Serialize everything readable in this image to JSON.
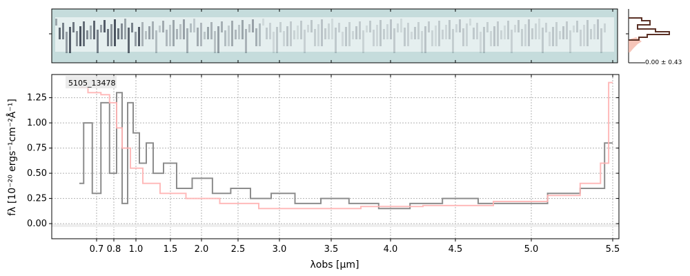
{
  "chart_data": {
    "type": "line",
    "object_label": "5105_13478",
    "xlabel": "λobs [μm]",
    "ylabel": "fλ [10⁻²⁰ ergs⁻¹cm⁻²Å⁻¹]",
    "x_ticks": [
      "0.7",
      "0.8",
      "1.0",
      "1.5",
      "2.0",
      "2.5",
      "3.0",
      "3.5",
      "4.0",
      "4.5",
      "5.0",
      "5.5"
    ],
    "y_ticks": [
      "0.00",
      "0.25",
      "0.50",
      "0.75",
      "1.00",
      "1.25"
    ],
    "ylim": [
      -0.15,
      1.48
    ],
    "grid": true,
    "side_panel_label": "0.00 ± 0.43",
    "colors": {
      "data": "#8c8c8c",
      "model": "#ffb3b3",
      "spectrum2d_bg": "#c5dcdc",
      "hist_line": "#5a3025",
      "hist_fill": "#f4b6a8"
    },
    "series": [
      {
        "name": "",
        "x": [
          0.6,
          0.65,
          0.7,
          0.75,
          0.8,
          0.85,
          0.9,
          0.95,
          1.0,
          1.1,
          1.2,
          1.3,
          1.5,
          1.7,
          2.0,
          2.3,
          2.5,
          2.8,
          3.0,
          3.3,
          3.5,
          3.8,
          4.0,
          4.3,
          4.5,
          4.8,
          5.0,
          5.2,
          5.4,
          5.5
        ],
        "values": [
          0.4,
          1.0,
          0.3,
          1.2,
          0.5,
          1.3,
          0.2,
          1.2,
          0.9,
          0.6,
          0.8,
          0.5,
          0.6,
          0.35,
          0.45,
          0.3,
          0.35,
          0.25,
          0.3,
          0.2,
          0.25,
          0.2,
          0.15,
          0.2,
          0.25,
          0.2,
          0.2,
          0.3,
          0.35,
          0.8
        ]
      },
      {
        "name": "",
        "x": [
          0.6,
          0.7,
          0.75,
          0.8,
          0.85,
          0.9,
          1.0,
          1.2,
          1.5,
          2.0,
          2.5,
          3.0,
          3.5,
          4.0,
          4.5,
          5.0,
          5.2,
          5.4,
          5.45,
          5.5
        ],
        "values": [
          1.35,
          1.3,
          1.28,
          1.2,
          0.95,
          0.75,
          0.55,
          0.4,
          0.3,
          0.25,
          0.2,
          0.15,
          0.15,
          0.17,
          0.18,
          0.22,
          0.28,
          0.4,
          0.6,
          1.4
        ]
      }
    ]
  }
}
